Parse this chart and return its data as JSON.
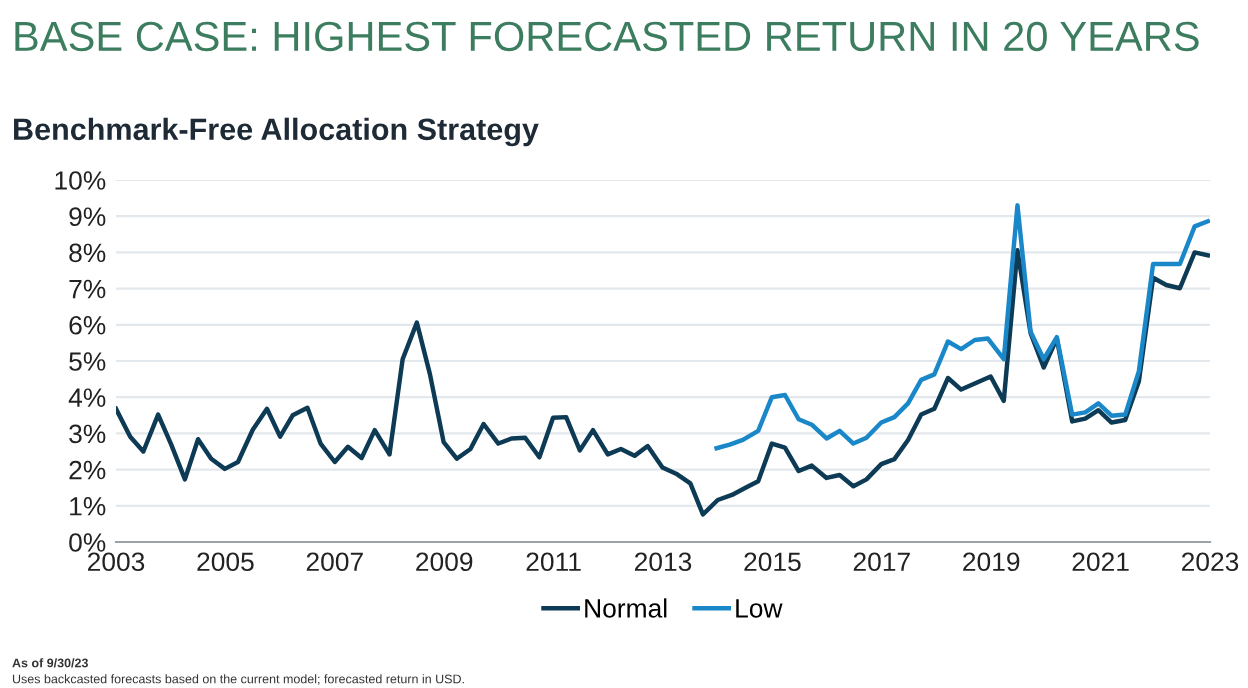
{
  "chart_data": {
    "type": "line",
    "title": "BASE CASE: HIGHEST FORECASTED RETURN IN 20 YEARS",
    "subtitle": "Benchmark-Free Allocation Strategy",
    "annotations": [
      "As of 9/30/23",
      "Uses backcasted forecasts based on the current model; forecasted return in USD."
    ],
    "series": [
      {
        "name": "Normal",
        "color": "#0d3a54",
        "x": [
          2003.0,
          2003.26,
          2003.5,
          2003.77,
          2004.01,
          2004.26,
          2004.5,
          2004.74,
          2004.99,
          2005.23,
          2005.5,
          2005.76,
          2006.0,
          2006.23,
          2006.5,
          2006.74,
          2007.0,
          2007.24,
          2007.49,
          2007.73,
          2008.0,
          2008.24,
          2008.5,
          2008.74,
          2008.99,
          2009.23,
          2009.48,
          2009.72,
          2009.99,
          2010.23,
          2010.48,
          2010.74,
          2010.99,
          2011.23,
          2011.48,
          2011.72,
          2011.99,
          2012.23,
          2012.48,
          2012.72,
          2012.99,
          2013.26,
          2013.5,
          2013.73,
          2014.0,
          2014.26,
          2014.5,
          2014.74,
          2014.99,
          2015.23,
          2015.48,
          2015.72,
          2015.99,
          2016.23,
          2016.48,
          2016.72,
          2016.99,
          2017.23,
          2017.48,
          2017.72,
          2017.96,
          2018.21,
          2018.45,
          2018.7,
          2018.99,
          2019.23,
          2019.48,
          2019.72,
          2019.96,
          2020.2,
          2020.48,
          2020.72,
          2020.96,
          2021.2,
          2021.45,
          2021.7,
          2021.96,
          2022.2,
          2022.45,
          2022.72,
          2022.96
        ],
        "values": [
          3.68,
          2.91,
          2.5,
          3.52,
          2.69,
          1.73,
          2.84,
          2.3,
          2.02,
          2.21,
          3.1,
          3.68,
          2.91,
          3.5,
          3.71,
          2.72,
          2.21,
          2.63,
          2.32,
          3.09,
          2.42,
          5.05,
          6.06,
          4.63,
          2.76,
          2.3,
          2.57,
          3.26,
          2.72,
          2.86,
          2.88,
          2.34,
          3.43,
          3.45,
          2.53,
          3.09,
          2.42,
          2.57,
          2.38,
          2.65,
          2.06,
          1.87,
          1.62,
          0.76,
          1.16,
          1.3,
          1.49,
          1.68,
          2.72,
          2.61,
          1.96,
          2.11,
          1.77,
          1.85,
          1.54,
          1.73,
          2.15,
          2.29,
          2.82,
          3.52,
          3.68,
          4.53,
          4.21,
          4.38,
          4.57,
          3.9,
          8.06,
          5.77,
          4.82,
          5.62,
          3.33,
          3.41,
          3.64,
          3.3,
          3.37,
          4.44,
          7.3,
          7.1,
          7.01,
          8.0,
          7.92
        ]
      },
      {
        "name": "Low",
        "color": "#1a87c8",
        "x": [
          2013.98,
          2014.22,
          2014.46,
          2014.74,
          2014.99,
          2015.23,
          2015.48,
          2015.72,
          2015.99,
          2016.23,
          2016.48,
          2016.72,
          2016.99,
          2017.23,
          2017.48,
          2017.72,
          2017.96,
          2018.21,
          2018.45,
          2018.7,
          2018.94,
          2019.23,
          2019.48,
          2019.72,
          2019.96,
          2020.2,
          2020.48,
          2020.72,
          2020.96,
          2021.2,
          2021.45,
          2021.7,
          2021.96,
          2022.2,
          2022.45,
          2022.72,
          2022.96
        ],
        "values": [
          2.59,
          2.69,
          2.82,
          3.07,
          4.0,
          4.06,
          3.39,
          3.24,
          2.86,
          3.07,
          2.72,
          2.88,
          3.3,
          3.45,
          3.83,
          4.48,
          4.63,
          5.54,
          5.33,
          5.58,
          5.62,
          5.05,
          9.3,
          5.81,
          5.05,
          5.66,
          3.52,
          3.58,
          3.83,
          3.49,
          3.52,
          4.72,
          7.68,
          7.68,
          7.68,
          8.72,
          8.86
        ]
      }
    ],
    "xlim": [
      2003,
      2023
    ],
    "xticks": [
      2003,
      2005,
      2007,
      2009,
      2011,
      2013,
      2015,
      2017,
      2019,
      2021,
      2023
    ],
    "ylim": [
      0,
      10
    ],
    "yticks": [
      {
        "value": 0,
        "label": "0%"
      },
      {
        "value": 1,
        "label": "1%"
      },
      {
        "value": 2,
        "label": "2%"
      },
      {
        "value": 3,
        "label": "3%"
      },
      {
        "value": 4,
        "label": "4%"
      },
      {
        "value": 5,
        "label": "5%"
      },
      {
        "value": 6,
        "label": "6%"
      },
      {
        "value": 7,
        "label": "7%"
      },
      {
        "value": 8,
        "label": "8%"
      },
      {
        "value": 9,
        "label": "9%"
      },
      {
        "value": 10,
        "label": "10%"
      }
    ],
    "grid": "y",
    "legend": "bottom",
    "marker": "none",
    "line_style": "solid"
  }
}
